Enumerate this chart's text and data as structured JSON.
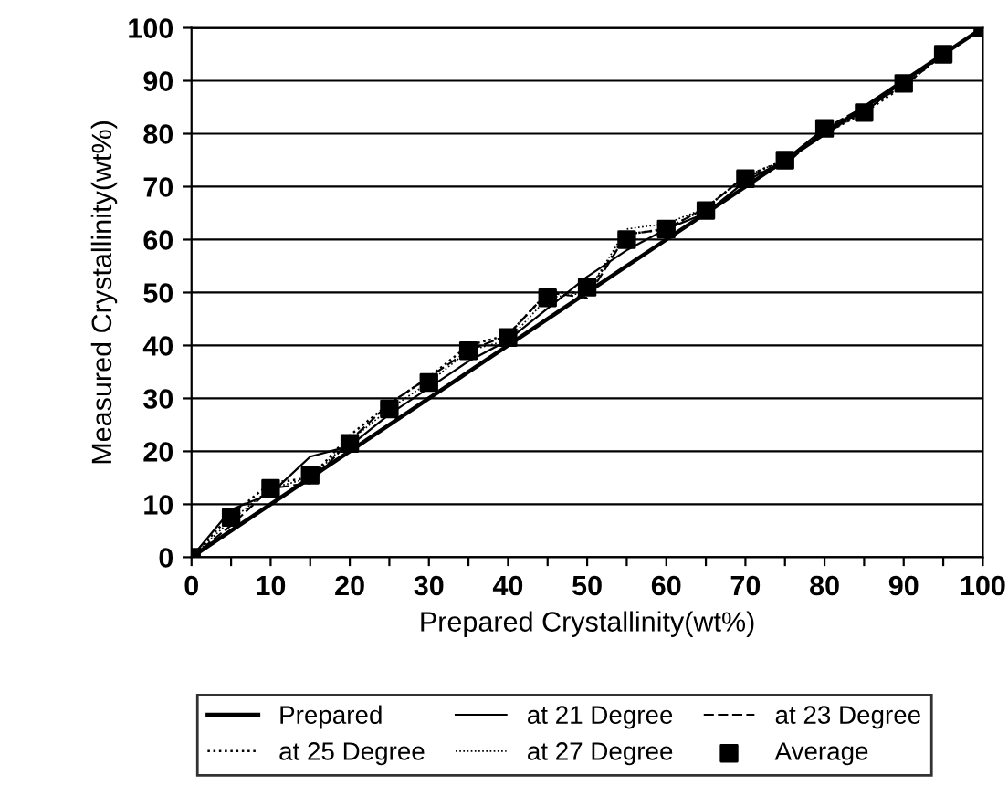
{
  "chart_data": {
    "type": "line",
    "xlabel": "Prepared Crystallinity(wt%)",
    "ylabel": "Measured Crystallinity(wt%)",
    "x": [
      0,
      5,
      10,
      15,
      20,
      25,
      30,
      35,
      40,
      45,
      50,
      55,
      60,
      65,
      70,
      75,
      80,
      85,
      90,
      95,
      100
    ],
    "series": [
      {
        "name": "Prepared",
        "color": "#000000",
        "line_style": "solid",
        "marker": "none",
        "values": [
          0,
          5,
          10,
          15,
          20,
          25,
          30,
          35,
          40,
          45,
          50,
          55,
          60,
          65,
          70,
          75,
          80,
          85,
          90,
          95,
          100
        ]
      },
      {
        "name": "at 21 Degree",
        "color": "#000000",
        "line_style": "solid",
        "marker": "none",
        "values": [
          0,
          9,
          12,
          19,
          21,
          27,
          32,
          37,
          41,
          47,
          53,
          58,
          62,
          65,
          71,
          75,
          81,
          84,
          90,
          95,
          100
        ]
      },
      {
        "name": "at 23 Degree",
        "color": "#000000",
        "line_style": "dashed",
        "marker": "none",
        "values": [
          0,
          6,
          13,
          14,
          22,
          29,
          34,
          39,
          42,
          50,
          49,
          61,
          62,
          66,
          72,
          74,
          81,
          85,
          89,
          95,
          100
        ]
      },
      {
        "name": "at 25 Degree",
        "color": "#000000",
        "line_style": "dotted",
        "marker": "none",
        "values": [
          0,
          8,
          14,
          15,
          23,
          29,
          34,
          40,
          42,
          50,
          50,
          61,
          62,
          66,
          72,
          75,
          80,
          84,
          89,
          95,
          100
        ]
      },
      {
        "name": "at 27 Degree",
        "color": "#000000",
        "line_style": "dotted",
        "marker": "none",
        "values": [
          0,
          7,
          13,
          15,
          22,
          28,
          33,
          39,
          41,
          49,
          50,
          62,
          63,
          66,
          72,
          75,
          80,
          84,
          90,
          95,
          100
        ]
      },
      {
        "name": "Average",
        "type": "scatter",
        "color": "#000000",
        "marker": "square",
        "values": [
          0,
          7.5,
          13,
          15.5,
          21.5,
          28,
          33,
          39,
          41.5,
          49,
          51,
          60,
          62,
          65.5,
          71.5,
          75,
          81,
          84,
          89.5,
          95,
          100
        ]
      }
    ],
    "xlim": [
      0,
      100
    ],
    "ylim": [
      0,
      100
    ],
    "xticks": [
      0,
      {
        "value": 5,
        "label": null
      },
      10,
      {
        "value": 15,
        "label": null
      },
      20,
      {
        "value": 25,
        "label": null
      },
      30,
      {
        "value": 35,
        "label": null
      },
      40,
      {
        "value": 45,
        "label": null
      },
      50,
      {
        "value": 55,
        "label": null
      },
      60,
      {
        "value": 65,
        "label": null
      },
      70,
      {
        "value": 75,
        "label": null
      },
      80,
      {
        "value": 85,
        "label": null
      },
      90,
      {
        "value": 95,
        "label": null
      },
      100
    ],
    "yticks": [
      0,
      10,
      20,
      30,
      40,
      50,
      60,
      70,
      80,
      90,
      100
    ],
    "grid": "y",
    "legend": "bottom"
  }
}
